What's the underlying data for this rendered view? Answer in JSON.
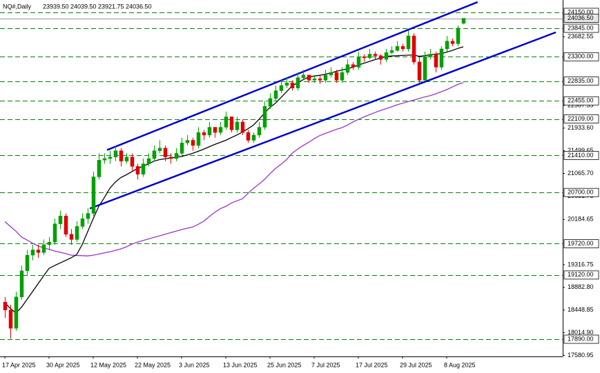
{
  "chart_data": {
    "type": "candlestick",
    "header": {
      "symbol": "NQ#,Daily",
      "ohlc": [
        "23939.50",
        "24039.50",
        "23921.75",
        "24036.50"
      ]
    },
    "categories": [
      "17 Apr 2025",
      null,
      null,
      null,
      null,
      null,
      null,
      null,
      "30 Apr 2025",
      null,
      null,
      null,
      null,
      null,
      null,
      null,
      "12 May 2025",
      null,
      null,
      null,
      null,
      null,
      null,
      null,
      "22 May 2025",
      null,
      null,
      null,
      null,
      null,
      null,
      null,
      "3 Jun 2025",
      null,
      null,
      null,
      null,
      null,
      null,
      null,
      "13 Jun 2025",
      null,
      null,
      null,
      null,
      null,
      null,
      null,
      "25 Jun 2025",
      null,
      null,
      null,
      null,
      null,
      null,
      null,
      "7 Jul 2025",
      null,
      null,
      null,
      null,
      null,
      null,
      null,
      "17 Jul 2025",
      null,
      null,
      null,
      null,
      null,
      null,
      null,
      "29 Jul 2025",
      null,
      null,
      null,
      null,
      null,
      null,
      null,
      "8 Aug 2025",
      null,
      null,
      null
    ],
    "open": [
      18600,
      18450,
      18100,
      18700,
      19200,
      19500,
      19600,
      19550,
      19700,
      19750,
      20100,
      20250,
      19900,
      19800,
      20050,
      20200,
      20300,
      21000,
      21320,
      21350,
      21380,
      21500,
      21300,
      21380,
      21200,
      21050,
      21250,
      21350,
      21500,
      21550,
      21380,
      21350,
      21450,
      21650,
      21700,
      21600,
      21850,
      21800,
      21950,
      21850,
      21950,
      22150,
      21900,
      22050,
      21850,
      21700,
      21800,
      21950,
      22350,
      22500,
      22650,
      22750,
      22800,
      22700,
      22900,
      22950,
      22850,
      22880,
      22850,
      22950,
      23000,
      22850,
      23000,
      23150,
      23100,
      23300,
      23280,
      23350,
      23320,
      23250,
      23380,
      23420,
      23500,
      23450,
      23700,
      23200,
      22850,
      23300,
      23350,
      23100,
      23450,
      23600,
      23550,
      23939.5
    ],
    "high": [
      18700,
      18550,
      18800,
      19300,
      19600,
      19700,
      19700,
      19800,
      19850,
      20200,
      20350,
      20300,
      20000,
      20150,
      20300,
      20400,
      21100,
      21450,
      21450,
      21500,
      21600,
      21550,
      21450,
      21450,
      21250,
      21350,
      21450,
      21600,
      21700,
      21600,
      21450,
      21550,
      21750,
      21800,
      21750,
      21950,
      21900,
      22050,
      21950,
      22050,
      22250,
      22150,
      22150,
      22100,
      21900,
      21850,
      22050,
      22450,
      22600,
      22750,
      22850,
      22900,
      22850,
      23000,
      23050,
      22950,
      22950,
      22950,
      23050,
      23100,
      23050,
      23100,
      23250,
      23200,
      23400,
      23350,
      23450,
      23400,
      23350,
      23450,
      23500,
      23600,
      23550,
      23800,
      23750,
      23300,
      23400,
      23450,
      23400,
      23500,
      23700,
      23650,
      23900,
      24039.5
    ],
    "low": [
      18300,
      17900,
      18050,
      18650,
      19100,
      19400,
      19450,
      19500,
      19600,
      19700,
      20000,
      19850,
      19700,
      19750,
      20000,
      20100,
      20250,
      20950,
      21250,
      21250,
      21300,
      21200,
      21250,
      21100,
      20950,
      21000,
      21200,
      21300,
      21450,
      21300,
      21250,
      21300,
      21400,
      21600,
      21500,
      21550,
      21700,
      21750,
      21750,
      21800,
      21900,
      21850,
      21850,
      21800,
      21650,
      21650,
      21750,
      21900,
      22300,
      22450,
      22600,
      22700,
      22650,
      22650,
      22850,
      22800,
      22800,
      22780,
      22800,
      22900,
      22800,
      22800,
      22950,
      23050,
      23050,
      23200,
      23250,
      23250,
      23150,
      23200,
      23350,
      23400,
      23400,
      23400,
      23150,
      22800,
      22850,
      23250,
      23000,
      23050,
      23400,
      23500,
      23500,
      23921.75
    ],
    "close": [
      18450,
      18100,
      18700,
      19200,
      19500,
      19600,
      19550,
      19700,
      19750,
      20100,
      20250,
      19900,
      19800,
      20050,
      20200,
      20300,
      21000,
      21320,
      21350,
      21380,
      21500,
      21300,
      21380,
      21200,
      21050,
      21250,
      21350,
      21500,
      21550,
      21380,
      21350,
      21450,
      21650,
      21700,
      21600,
      21850,
      21800,
      21950,
      21850,
      21950,
      22150,
      21900,
      22050,
      21850,
      21700,
      21800,
      21950,
      22350,
      22500,
      22650,
      22750,
      22800,
      22700,
      22900,
      22950,
      22850,
      22880,
      22850,
      22950,
      23000,
      22850,
      23000,
      23150,
      23100,
      23300,
      23280,
      23350,
      23320,
      23250,
      23380,
      23420,
      23500,
      23450,
      23700,
      23200,
      22850,
      23300,
      23350,
      23100,
      23450,
      23600,
      23550,
      23850,
      24036.5
    ],
    "up_color": "#00a000",
    "down_color": "#e00000",
    "moving_averages": [
      {
        "color": "#9933cc",
        "values": [
          20143,
          20050,
          19960,
          19850,
          19790,
          19730,
          19680,
          19640,
          19610,
          19580,
          19555,
          19530,
          19500,
          19495,
          19490,
          19485,
          19500,
          19520,
          19545,
          19565,
          19590,
          19620,
          19660,
          19710,
          19750,
          19780,
          19810,
          19840,
          19870,
          19900,
          19930,
          19960,
          19990,
          20015,
          20038,
          20090,
          20150,
          20236,
          20320,
          20390,
          20434,
          20500,
          20540,
          20580,
          20680,
          20780,
          20860,
          20950,
          21060,
          21160,
          21240,
          21330,
          21450,
          21530,
          21600,
          21660,
          21730,
          21790,
          21830,
          21870,
          21910,
          21940,
          21990,
          22050,
          22100,
          22147,
          22190,
          22230,
          22270,
          22305,
          22340,
          22380,
          22410,
          22440,
          22470,
          22500,
          22530,
          22555,
          22590,
          22630,
          22670,
          22720,
          22770,
          22806
        ]
      },
      {
        "color": "#000000",
        "values": [
          18588,
          18480,
          18391,
          18500,
          18650,
          18800,
          18950,
          19100,
          19247,
          19300,
          19350,
          19400,
          19450,
          19511,
          19700,
          19950,
          20200,
          20434,
          20600,
          20780,
          20900,
          20987,
          21040,
          21100,
          21158,
          21200,
          21250,
          21300,
          21330,
          21345,
          21360,
          21375,
          21390,
          21420,
          21450,
          21488,
          21530,
          21575,
          21620,
          21660,
          21700,
          21751,
          21800,
          21860,
          21920,
          21990,
          22100,
          22220,
          22330,
          22410,
          22520,
          22630,
          22740,
          22800,
          22860,
          22911,
          22930,
          22945,
          22964,
          22990,
          23020,
          23045,
          23069,
          23100,
          23140,
          23175,
          23210,
          23245,
          23275,
          23307,
          23315,
          23320,
          23325,
          23330,
          23333,
          23310,
          23320,
          23340,
          23350,
          23359,
          23390,
          23420,
          23460,
          23491
        ]
      }
    ],
    "trendlines": [
      {
        "color": "#0000cc",
        "x": [
          18.5,
          85.6
        ],
        "values": [
          21514,
          24348
        ]
      },
      {
        "color": "#0000cc",
        "x": [
          15.4,
          99.75
        ],
        "values": [
          20394,
          23768
        ]
      }
    ],
    "levels": [
      {
        "value": 24150,
        "label": "24150.00"
      },
      {
        "value": 23845,
        "label": "23845.00"
      },
      {
        "value": 23300,
        "label": "23300.00"
      },
      {
        "value": 22835,
        "label": "22835.00"
      },
      {
        "value": 22455,
        "label": "22455.00"
      },
      {
        "value": 22109,
        "label": "22109.00"
      },
      {
        "value": 21410,
        "label": "21410.00"
      },
      {
        "value": 20700,
        "label": "20700.00"
      },
      {
        "value": 19720,
        "label": "19720.00"
      },
      {
        "value": 19120,
        "label": "19120.00"
      },
      {
        "value": 17890,
        "label": "17890.00"
      }
    ],
    "level_color": "#008000",
    "current_price": {
      "value": 24036.5,
      "label": "24036.50"
    },
    "yticks": [
      {
        "value": 23682.55,
        "label": "23682.55"
      },
      {
        "value": 22367.35,
        "label": "22367.35"
      },
      {
        "value": 21933.6,
        "label": "21933.60"
      },
      {
        "value": 21499.65,
        "label": "21499.65"
      },
      {
        "value": 21065.7,
        "label": "21065.70"
      },
      {
        "value": 20631.75,
        "label": "20631.75"
      },
      {
        "value": 20184.65,
        "label": "20184.65"
      },
      {
        "value": 19316.75,
        "label": "19316.75"
      },
      {
        "value": 18882.8,
        "label": "18882.80"
      },
      {
        "value": 18448.85,
        "label": "18448.85"
      },
      {
        "value": 18014.9,
        "label": "18014.90"
      },
      {
        "value": 17580.95,
        "label": "17580.95"
      }
    ],
    "ylim": [
      17560,
      24387
    ],
    "xlim": [
      -0.875,
      101
    ]
  }
}
